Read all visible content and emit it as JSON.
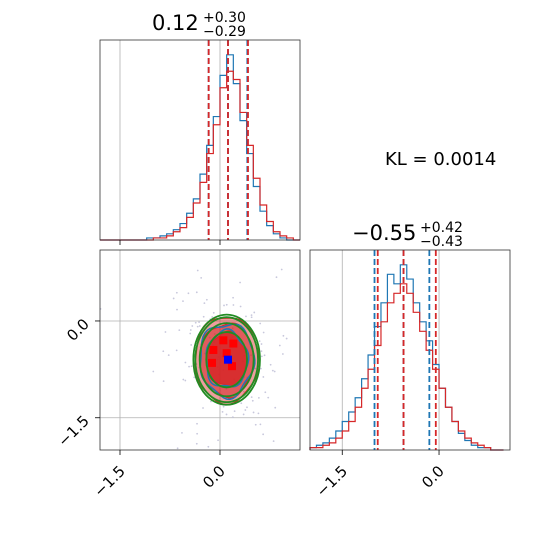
{
  "chart_data": {
    "type": "corner",
    "kl_label": "KL = 0.0014",
    "colors": {
      "series_a": "#d62728",
      "series_b": "#1f77b4",
      "contour_ref": "#228b22",
      "map_a": "#ff0000",
      "map_b": "#0000ff"
    },
    "grid": true,
    "series": [
      {
        "color": "#d62728"
      },
      {
        "color": "#1f77b4"
      }
    ],
    "params": [
      {
        "title": {
          "median": "0.12",
          "plus": "+0.30",
          "minus": "−0.29"
        },
        "range": [
          -1.8,
          1.2
        ],
        "ticks": [
          {
            "value": -1.5,
            "label": "−1.5"
          },
          {
            "value": 0.0,
            "label": "0.0"
          }
        ],
        "quantiles": {
          "series_a": [
            -0.17,
            0.12,
            0.42
          ],
          "series_b": [
            -0.17,
            0.12,
            0.41
          ]
        },
        "hist_bins": [
          -1.75,
          -1.65,
          -1.55,
          -1.45,
          -1.35,
          -1.25,
          -1.15,
          -1.05,
          -0.95,
          -0.85,
          -0.75,
          -0.65,
          -0.55,
          -0.45,
          -0.35,
          -0.25,
          -0.15,
          -0.05,
          0.05,
          0.15,
          0.25,
          0.35,
          0.45,
          0.55,
          0.65,
          0.75,
          0.85,
          0.95,
          1.05,
          1.15
        ],
        "hist_a": [
          0,
          0,
          0,
          0,
          0,
          0,
          0,
          0,
          1,
          1,
          2,
          4,
          6,
          11,
          18,
          28,
          42,
          56,
          74,
          82,
          78,
          62,
          46,
          30,
          17,
          9,
          4,
          2,
          1,
          0
        ],
        "hist_b": [
          0,
          0,
          0,
          0,
          0,
          0,
          0,
          1,
          1,
          2,
          3,
          5,
          8,
          13,
          20,
          32,
          46,
          60,
          80,
          90,
          76,
          58,
          42,
          26,
          14,
          7,
          3,
          1,
          0,
          0
        ]
      },
      {
        "title": {
          "median": "−0.55",
          "plus": "+0.42",
          "minus": "−0.43"
        },
        "range": [
          -2.0,
          1.1
        ],
        "ticks": [
          {
            "value": -1.5,
            "label": "−1.5"
          },
          {
            "value": 0.0,
            "label": "0.0"
          }
        ],
        "quantiles": {
          "series_a": [
            -0.95,
            -0.55,
            -0.05
          ],
          "series_b": [
            -1.0,
            -0.55,
            -0.15
          ]
        },
        "hist_bins": [
          -1.95,
          -1.85,
          -1.75,
          -1.65,
          -1.55,
          -1.45,
          -1.35,
          -1.25,
          -1.15,
          -1.05,
          -0.95,
          -0.85,
          -0.75,
          -0.65,
          -0.55,
          -0.45,
          -0.35,
          -0.25,
          -0.15,
          -0.05,
          0.05,
          0.15,
          0.25,
          0.35,
          0.45,
          0.55,
          0.65,
          0.75,
          0.85,
          0.95
        ],
        "hist_a": [
          1,
          1,
          2,
          3,
          5,
          8,
          12,
          18,
          26,
          34,
          44,
          54,
          62,
          66,
          70,
          66,
          58,
          50,
          42,
          34,
          26,
          18,
          12,
          8,
          5,
          3,
          2,
          1,
          0,
          0
        ],
        "hist_b": [
          1,
          2,
          3,
          5,
          8,
          12,
          16,
          22,
          30,
          40,
          52,
          62,
          74,
          70,
          78,
          72,
          62,
          54,
          46,
          36,
          26,
          18,
          12,
          7,
          4,
          2,
          1,
          1,
          0,
          0
        ]
      }
    ],
    "joint": {
      "x_param": 0,
      "y_param": 1,
      "map_point_a": [
        0.1,
        -0.5
      ],
      "map_point_b": [
        0.12,
        -0.6
      ],
      "ellipse_levels": [
        0.6,
        1.0,
        1.35,
        1.6
      ],
      "center": [
        0.1,
        -0.6
      ],
      "sigma": [
        0.3,
        0.42
      ]
    }
  }
}
